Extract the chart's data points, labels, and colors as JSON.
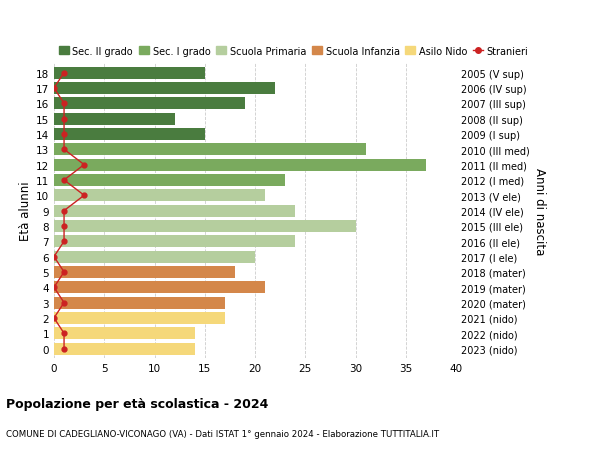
{
  "ages": [
    18,
    17,
    16,
    15,
    14,
    13,
    12,
    11,
    10,
    9,
    8,
    7,
    6,
    5,
    4,
    3,
    2,
    1,
    0
  ],
  "bar_values": [
    15,
    22,
    19,
    12,
    15,
    31,
    37,
    23,
    21,
    24,
    30,
    24,
    20,
    18,
    21,
    17,
    17,
    14,
    14
  ],
  "stranieri": [
    1,
    0,
    1,
    1,
    1,
    1,
    3,
    1,
    3,
    1,
    1,
    1,
    0,
    1,
    0,
    1,
    0,
    1,
    1
  ],
  "right_labels": [
    "2005 (V sup)",
    "2006 (IV sup)",
    "2007 (III sup)",
    "2008 (II sup)",
    "2009 (I sup)",
    "2010 (III med)",
    "2011 (II med)",
    "2012 (I med)",
    "2013 (V ele)",
    "2014 (IV ele)",
    "2015 (III ele)",
    "2016 (II ele)",
    "2017 (I ele)",
    "2018 (mater)",
    "2019 (mater)",
    "2020 (mater)",
    "2021 (nido)",
    "2022 (nido)",
    "2023 (nido)"
  ],
  "bar_colors": [
    "#4a7c3f",
    "#4a7c3f",
    "#4a7c3f",
    "#4a7c3f",
    "#4a7c3f",
    "#7aaa5e",
    "#7aaa5e",
    "#7aaa5e",
    "#b5ce9e",
    "#b5ce9e",
    "#b5ce9e",
    "#b5ce9e",
    "#b5ce9e",
    "#d4874a",
    "#d4874a",
    "#d4874a",
    "#f5d87a",
    "#f5d87a",
    "#f5d87a"
  ],
  "stranieri_x": [
    1,
    0,
    1,
    1,
    1,
    1,
    3,
    1,
    3,
    1,
    1,
    1,
    0,
    1,
    0,
    1,
    0,
    1,
    1
  ],
  "legend_labels": [
    "Sec. II grado",
    "Sec. I grado",
    "Scuola Primaria",
    "Scuola Infanzia",
    "Asilo Nido",
    "Stranieri"
  ],
  "legend_colors": [
    "#4a7c3f",
    "#7aaa5e",
    "#b5ce9e",
    "#d4874a",
    "#f5d87a",
    "#cc2222"
  ],
  "ylabel": "Età alunni",
  "right_ylabel": "Anni di nascita",
  "title": "Popolazione per età scolastica - 2024",
  "subtitle": "COMUNE DI CADEGLIANO-VICONAGO (VA) - Dati ISTAT 1° gennaio 2024 - Elaborazione TUTTITALIA.IT",
  "xlim": [
    0,
    40
  ],
  "xticks": [
    0,
    5,
    10,
    15,
    20,
    25,
    30,
    35,
    40
  ],
  "bg_color": "#ffffff",
  "grid_color": "#cccccc"
}
